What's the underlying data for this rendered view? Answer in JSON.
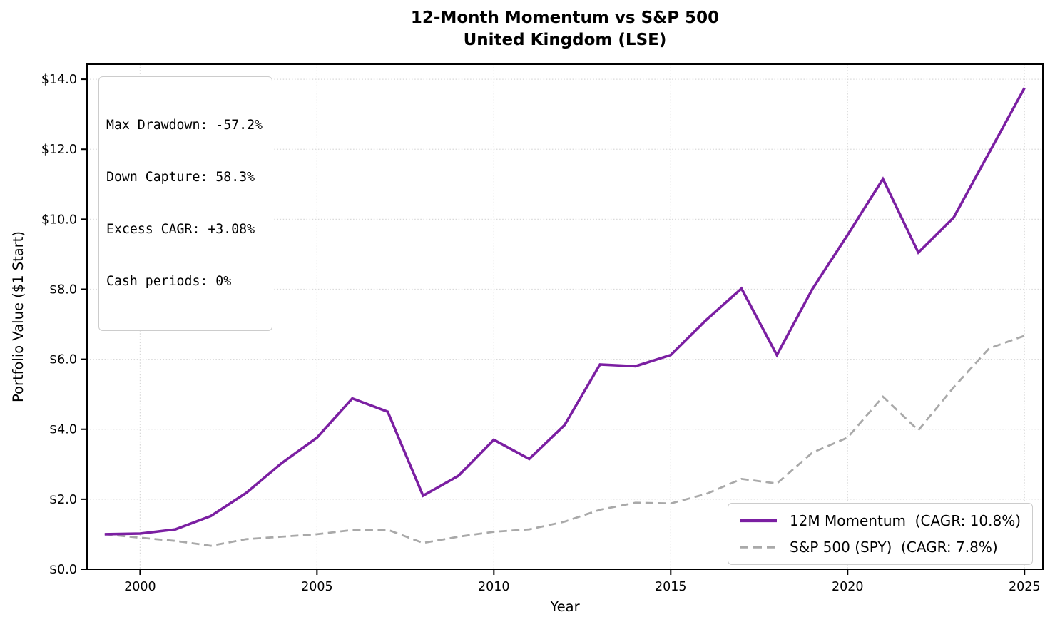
{
  "title": {
    "line1": "12-Month Momentum vs S&P 500",
    "line2": "United Kingdom (LSE)"
  },
  "stats_box": {
    "lines": [
      "Max Drawdown: -57.2%",
      "Down Capture: 58.3%",
      "Excess CAGR: +3.08%",
      "Cash periods: 0%"
    ]
  },
  "legend": {
    "items": [
      {
        "label": "12M Momentum  (CAGR: 10.8%)",
        "color": "#7B1FA2",
        "style": "solid"
      },
      {
        "label": "S&P 500 (SPY)  (CAGR: 7.8%)",
        "color": "#A9A9A9",
        "style": "dashed"
      }
    ]
  },
  "chart_data": {
    "type": "line",
    "title": "12-Month Momentum vs S&P 500 — United Kingdom (LSE)",
    "xlabel": "Year",
    "ylabel": "Portfolio Value ($1 Start)",
    "grid": true,
    "legend_position": "lower right",
    "xlim": [
      1998.5,
      2025.52
    ],
    "ylim": [
      0,
      14.43
    ],
    "x_ticks": [
      2000,
      2005,
      2010,
      2015,
      2020,
      2025
    ],
    "y_ticks": [
      0,
      2,
      4,
      6,
      8,
      10,
      12,
      14
    ],
    "y_tick_labels": [
      "$0.0",
      "$2.0",
      "$4.0",
      "$6.0",
      "$8.0",
      "$10.0",
      "$12.0",
      "$14.0"
    ],
    "x": [
      1999,
      2000,
      2001,
      2002,
      2003,
      2004,
      2005,
      2006,
      2007,
      2008,
      2009,
      2010,
      2011,
      2012,
      2013,
      2014,
      2015,
      2016,
      2017,
      2018,
      2019,
      2020,
      2021,
      2022,
      2023,
      2024,
      2025
    ],
    "series": [
      {
        "name": "S&P 500 (SPY)",
        "cagr": "7.8%",
        "color": "#A9A9A9",
        "dashed": true,
        "line_width": 2.8,
        "values": [
          1.0,
          0.9,
          0.81,
          0.67,
          0.86,
          0.93,
          1.0,
          1.12,
          1.13,
          0.75,
          0.93,
          1.07,
          1.14,
          1.36,
          1.7,
          1.9,
          1.88,
          2.15,
          2.58,
          2.45,
          3.33,
          3.76,
          4.93,
          3.97,
          5.2,
          6.31,
          6.67
        ]
      },
      {
        "name": "12M Momentum",
        "cagr": "10.8%",
        "color": "#7B1FA2",
        "dashed": false,
        "line_width": 3.6,
        "values": [
          1.0,
          1.02,
          1.14,
          1.52,
          2.18,
          3.03,
          3.76,
          4.88,
          4.5,
          2.1,
          2.67,
          3.7,
          3.15,
          4.12,
          5.85,
          5.8,
          6.12,
          7.12,
          8.02,
          6.12,
          8.0,
          9.55,
          11.15,
          9.05,
          10.05,
          11.9,
          13.75
        ]
      }
    ]
  }
}
